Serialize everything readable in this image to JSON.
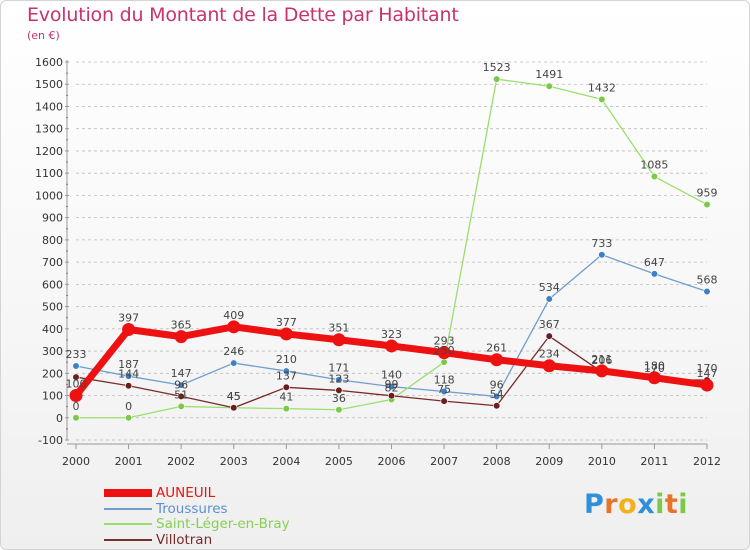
{
  "title": "Evolution du Montant de la Dette par Habitant",
  "unit": "(en €)",
  "colors": {
    "title": "#c8326e",
    "grid": "#bbbbbb",
    "axis": "#999999",
    "tick": "#e03050",
    "label": "#333333"
  },
  "chart_data": {
    "type": "line",
    "title": "Evolution du Montant de la Dette par Habitant",
    "ylabel": "(en €)",
    "xlabel": "",
    "x": [
      "2000",
      "2001",
      "2002",
      "2003",
      "2004",
      "2005",
      "2006",
      "2007",
      "2008",
      "2009",
      "2010",
      "2011",
      "2012"
    ],
    "ylim": [
      -100,
      1600
    ],
    "yticks": [
      -100,
      0,
      100,
      200,
      300,
      400,
      500,
      600,
      700,
      800,
      900,
      1000,
      1100,
      1200,
      1300,
      1400,
      1500,
      1600
    ],
    "grid": "horizontal dashed",
    "legend_position": "bottom-left",
    "series": [
      {
        "name": "AUNEUIL",
        "color": "#ee1111",
        "legend_text_color": "#ee1111",
        "marker": "#ee1111",
        "width": 7,
        "values": [
          100,
          397,
          365,
          409,
          377,
          351,
          323,
          293,
          261,
          234,
          211,
          180,
          147
        ],
        "labels": [
          "100",
          "397",
          "365",
          "409",
          "377",
          "351",
          "323",
          "293",
          "261",
          "234",
          "211",
          "180",
          "147"
        ]
      },
      {
        "name": "Troussures",
        "color": "#6f9ece",
        "legend_text_color": "#5b8fd0",
        "marker": "#3f7fc4",
        "width": 1.3,
        "values": [
          233,
          187,
          147,
          246,
          210,
          171,
          140,
          118,
          96,
          534,
          733,
          647,
          568
        ],
        "labels": [
          "233",
          "187",
          "147",
          "246",
          "210",
          "171",
          "140",
          "118",
          "96",
          "534",
          "733",
          "647",
          "568"
        ]
      },
      {
        "name": "Saint-Léger-en-Bray",
        "color": "#9adf6c",
        "legend_text_color": "#86cf55",
        "marker": "#7cc948",
        "width": 1.3,
        "values": [
          0,
          0,
          51,
          45,
          41,
          36,
          82,
          250,
          1523,
          1491,
          1432,
          1085,
          959
        ],
        "labels": [
          "0",
          "0",
          "51",
          "45",
          "41",
          "36",
          "82",
          "250",
          "1523",
          "1491",
          "1432",
          "1085",
          "959"
        ]
      },
      {
        "name": "Villotran",
        "color": "#7a2a2a",
        "legend_text_color": "#7a2a2a",
        "marker": "#6b1e1e",
        "width": 1.3,
        "values": [
          183,
          144,
          96,
          45,
          137,
          123,
          99,
          75,
          54,
          367,
          206,
          170,
          170
        ],
        "labels": [
          "",
          "144",
          "96",
          "45",
          "137",
          "123",
          "99",
          "75",
          "54",
          "367",
          "206",
          "170",
          "170"
        ]
      }
    ]
  },
  "logo": {
    "letters": [
      {
        "ch": "P",
        "color": "#2f8fd8"
      },
      {
        "ch": "r",
        "color": "#e8732a"
      },
      {
        "ch": "o",
        "color": "#f2b21c"
      },
      {
        "ch": "x",
        "color": "#2f8fd8"
      },
      {
        "ch": "i",
        "color": "#7cc948"
      },
      {
        "ch": "t",
        "color": "#e8732a"
      },
      {
        "ch": "i",
        "color": "#7cc948"
      }
    ]
  }
}
